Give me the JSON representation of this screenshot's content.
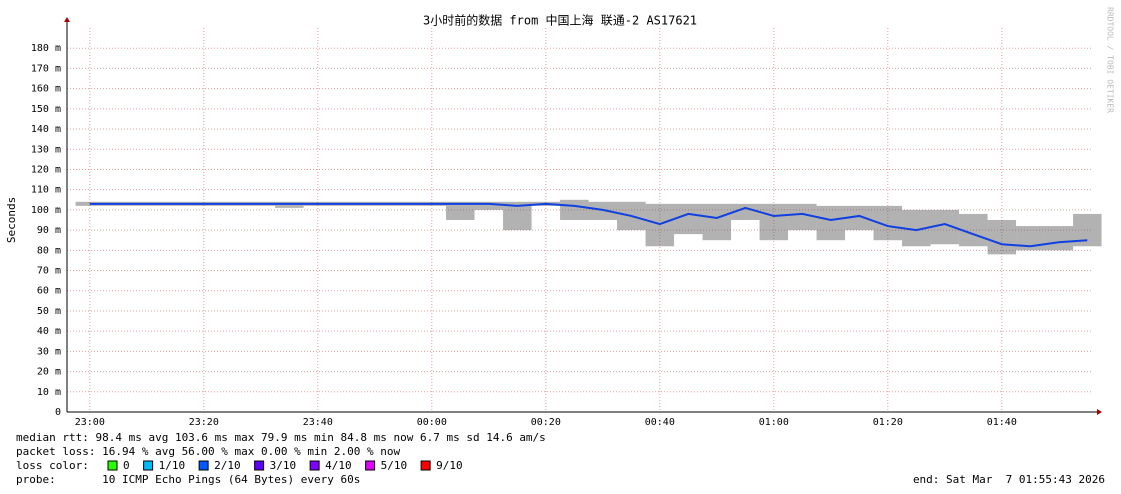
{
  "chart_data": {
    "type": "line",
    "title": "3小时前的数据 from 中国上海 联通-2 AS17621",
    "y_label": "Seconds",
    "watermark": "RRDTOOL / TOBI OETIKER",
    "x": [
      "23:00",
      "23:05",
      "23:10",
      "23:15",
      "23:20",
      "23:25",
      "23:30",
      "23:35",
      "23:40",
      "23:45",
      "23:50",
      "23:55",
      "00:00",
      "00:05",
      "00:10",
      "00:15",
      "00:20",
      "00:25",
      "00:30",
      "00:35",
      "00:40",
      "00:45",
      "00:50",
      "00:55",
      "01:00",
      "01:05",
      "01:10",
      "01:15",
      "01:20",
      "01:25",
      "01:30",
      "01:35",
      "01:40",
      "01:45",
      "01:50",
      "01:55"
    ],
    "xlim": [
      "22:56",
      "01:56"
    ],
    "xticks": [
      "23:00",
      "23:20",
      "23:40",
      "00:00",
      "00:20",
      "00:40",
      "01:00",
      "01:20",
      "01:40"
    ],
    "ylim": [
      0,
      190
    ],
    "yticks": [
      0,
      {
        "value": 10,
        "label": "10 m"
      },
      {
        "value": 20,
        "label": "20 m"
      },
      {
        "value": 30,
        "label": "30 m"
      },
      {
        "value": 40,
        "label": "40 m"
      },
      {
        "value": 50,
        "label": "50 m"
      },
      {
        "value": 60,
        "label": "60 m"
      },
      {
        "value": 70,
        "label": "70 m"
      },
      {
        "value": 80,
        "label": "80 m"
      },
      {
        "value": 90,
        "label": "90 m"
      },
      {
        "value": 100,
        "label": "100 m"
      },
      {
        "value": 110,
        "label": "110 m"
      },
      {
        "value": 120,
        "label": "120 m"
      },
      {
        "value": 130,
        "label": "130 m"
      },
      {
        "value": 140,
        "label": "140 m"
      },
      {
        "value": 150,
        "label": "150 m"
      },
      {
        "value": 160,
        "label": "160 m"
      },
      {
        "value": 170,
        "label": "170 m"
      },
      {
        "value": 180,
        "label": "180 m"
      }
    ],
    "grid": true,
    "smoke_color": "#555555",
    "smoke_low": [
      102,
      102,
      102,
      102,
      102,
      102,
      102,
      101,
      102,
      102,
      102,
      102,
      102,
      95,
      100,
      90,
      102,
      95,
      95,
      90,
      82,
      88,
      85,
      95,
      85,
      90,
      85,
      90,
      85,
      82,
      83,
      82,
      78,
      80,
      80,
      82
    ],
    "smoke_high": [
      104,
      104,
      104,
      104,
      104,
      104,
      104,
      104,
      104,
      104,
      104,
      104,
      104,
      104,
      104,
      104,
      104,
      105,
      104,
      104,
      103,
      103,
      103,
      103,
      103,
      103,
      102,
      102,
      102,
      100,
      100,
      98,
      95,
      92,
      92,
      98
    ],
    "series": [
      {
        "name": "median rtt",
        "color": "#1040e0",
        "values": [
          103,
          103,
          103,
          103,
          103,
          103,
          103,
          103,
          103,
          103,
          103,
          103,
          103,
          103,
          103,
          102,
          103,
          102,
          100,
          97,
          93,
          98,
          96,
          101,
          97,
          98,
          95,
          97,
          92,
          90,
          93,
          88,
          83,
          82,
          84,
          85
        ]
      }
    ]
  },
  "footer": {
    "median": "median rtt:  98.4 ms avg  103.6 ms max  79.9 ms min  84.8 ms now  6.7 ms sd  14.6   am/s",
    "packet_loss": "packet loss: 16.94 % avg  56.00 % max  0.00 % min  2.00 % now",
    "loss_color_label": "loss color:",
    "loss_colors": [
      {
        "label": "0",
        "color": "#26ff00"
      },
      {
        "label": "1/10",
        "color": "#00b8ff"
      },
      {
        "label": "2/10",
        "color": "#0059ff"
      },
      {
        "label": "3/10",
        "color": "#5e00ff"
      },
      {
        "label": "4/10",
        "color": "#7e00ff"
      },
      {
        "label": "5/10",
        "color": "#dd00ff"
      },
      {
        "label": "9/10",
        "color": "#ff0000"
      }
    ],
    "probe": "probe:       10 ICMP Echo Pings (64 Bytes) every 60s",
    "end": "end: Sat Mar  7 01:55:43 2026"
  }
}
